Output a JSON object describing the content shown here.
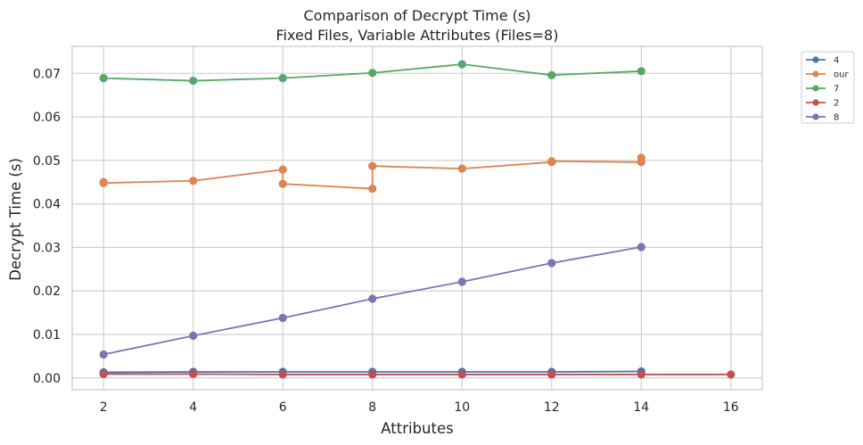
{
  "chart_data": {
    "type": "line",
    "title": "Comparison of Decrypt Time (s)",
    "subtitle": "Fixed Files, Variable Attributes (Files=8)",
    "xlabel": "Attributes",
    "ylabel": "Decrypt Time (s)",
    "xlim": [
      1.3,
      16.7
    ],
    "ylim": [
      -0.0027,
      0.0762
    ],
    "xticks": [
      2,
      4,
      6,
      8,
      10,
      12,
      14,
      16
    ],
    "yticks": [
      0.0,
      0.01,
      0.02,
      0.03,
      0.04,
      0.05,
      0.06,
      0.07
    ],
    "ytick_labels": [
      "0.00",
      "0.01",
      "0.02",
      "0.03",
      "0.04",
      "0.05",
      "0.06",
      "0.07"
    ],
    "grid": true,
    "legend_placement": "outside-top-right",
    "series": [
      {
        "name": "4",
        "color": "#4c72b0",
        "points": [
          [
            2,
            0.0013
          ],
          [
            4,
            0.0014
          ],
          [
            6,
            0.0014
          ],
          [
            8,
            0.0014
          ],
          [
            10,
            0.0014
          ],
          [
            12,
            0.0014
          ],
          [
            14,
            0.0015
          ]
        ]
      },
      {
        "name": "our",
        "color": "#dd8452",
        "points": [
          [
            2,
            0.045
          ],
          [
            2,
            0.0448
          ],
          [
            4,
            0.0453
          ],
          [
            6,
            0.0479
          ],
          [
            6,
            0.0446
          ],
          [
            8,
            0.0435
          ],
          [
            8,
            0.0487
          ],
          [
            10,
            0.0481
          ],
          [
            12,
            0.0496
          ],
          [
            12,
            0.0498
          ],
          [
            14,
            0.0496
          ],
          [
            14,
            0.0506
          ]
        ]
      },
      {
        "name": "7",
        "color": "#55a868",
        "points": [
          [
            2,
            0.0689
          ],
          [
            4,
            0.0683
          ],
          [
            6,
            0.0689
          ],
          [
            8,
            0.0701
          ],
          [
            10,
            0.0721
          ],
          [
            12,
            0.0696
          ],
          [
            14,
            0.0705
          ]
        ]
      },
      {
        "name": "2",
        "color": "#c44e52",
        "points": [
          [
            2,
            0.0009
          ],
          [
            4,
            0.0009
          ],
          [
            6,
            0.0008
          ],
          [
            8,
            0.0008
          ],
          [
            10,
            0.0008
          ],
          [
            12,
            0.0008
          ],
          [
            14,
            0.0008
          ],
          [
            16,
            0.0008
          ]
        ]
      },
      {
        "name": "8",
        "color": "#8172b3",
        "points": [
          [
            2,
            0.0054
          ],
          [
            4,
            0.0097
          ],
          [
            6,
            0.0138
          ],
          [
            8,
            0.0182
          ],
          [
            10,
            0.0221
          ],
          [
            12,
            0.0264
          ],
          [
            14,
            0.0301
          ]
        ]
      }
    ]
  }
}
